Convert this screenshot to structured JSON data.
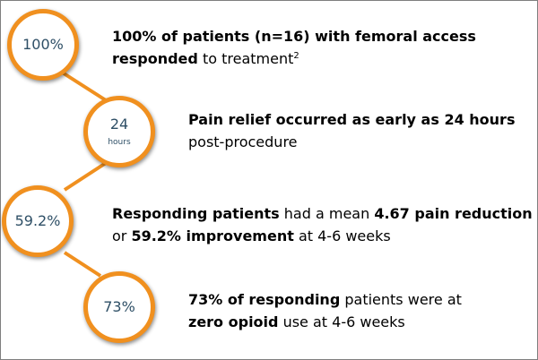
{
  "steps": [
    {
      "value": "100%",
      "unit": "",
      "lines": [
        [
          {
            "t": "100% of patients (n=16) with femoral access",
            "b": true
          }
        ],
        [
          {
            "t": "responded",
            "b": true
          },
          {
            "t": " to treatment",
            "b": false
          },
          {
            "t": "2",
            "sup": true
          }
        ]
      ]
    },
    {
      "value": "24",
      "unit": "hours",
      "lines": [
        [
          {
            "t": "Pain relief occurred as early as 24 hours",
            "b": true
          }
        ],
        [
          {
            "t": "post-procedure",
            "b": false
          }
        ]
      ]
    },
    {
      "value": "59.2%",
      "unit": "",
      "lines": [
        [
          {
            "t": "Responding patients",
            "b": true
          },
          {
            "t": " had a mean ",
            "b": false
          },
          {
            "t": "4.67 pain reduction",
            "b": true
          }
        ],
        [
          {
            "t": "or ",
            "b": false
          },
          {
            "t": "59.2% improvement",
            "b": true
          },
          {
            "t": " at 4-6 weeks",
            "b": false
          }
        ]
      ]
    },
    {
      "value": "73%",
      "unit": "",
      "lines": [
        [
          {
            "t": "73% of responding",
            "b": true
          },
          {
            "t": " patients were at",
            "b": false
          }
        ],
        [
          {
            "t": "zero opioid",
            "b": true
          },
          {
            "t": " use at 4-6 weeks",
            "b": false
          }
        ]
      ]
    }
  ],
  "colors": {
    "accent": "#f0901f",
    "circle_text": "#2e4f66",
    "body_text": "#000000"
  }
}
